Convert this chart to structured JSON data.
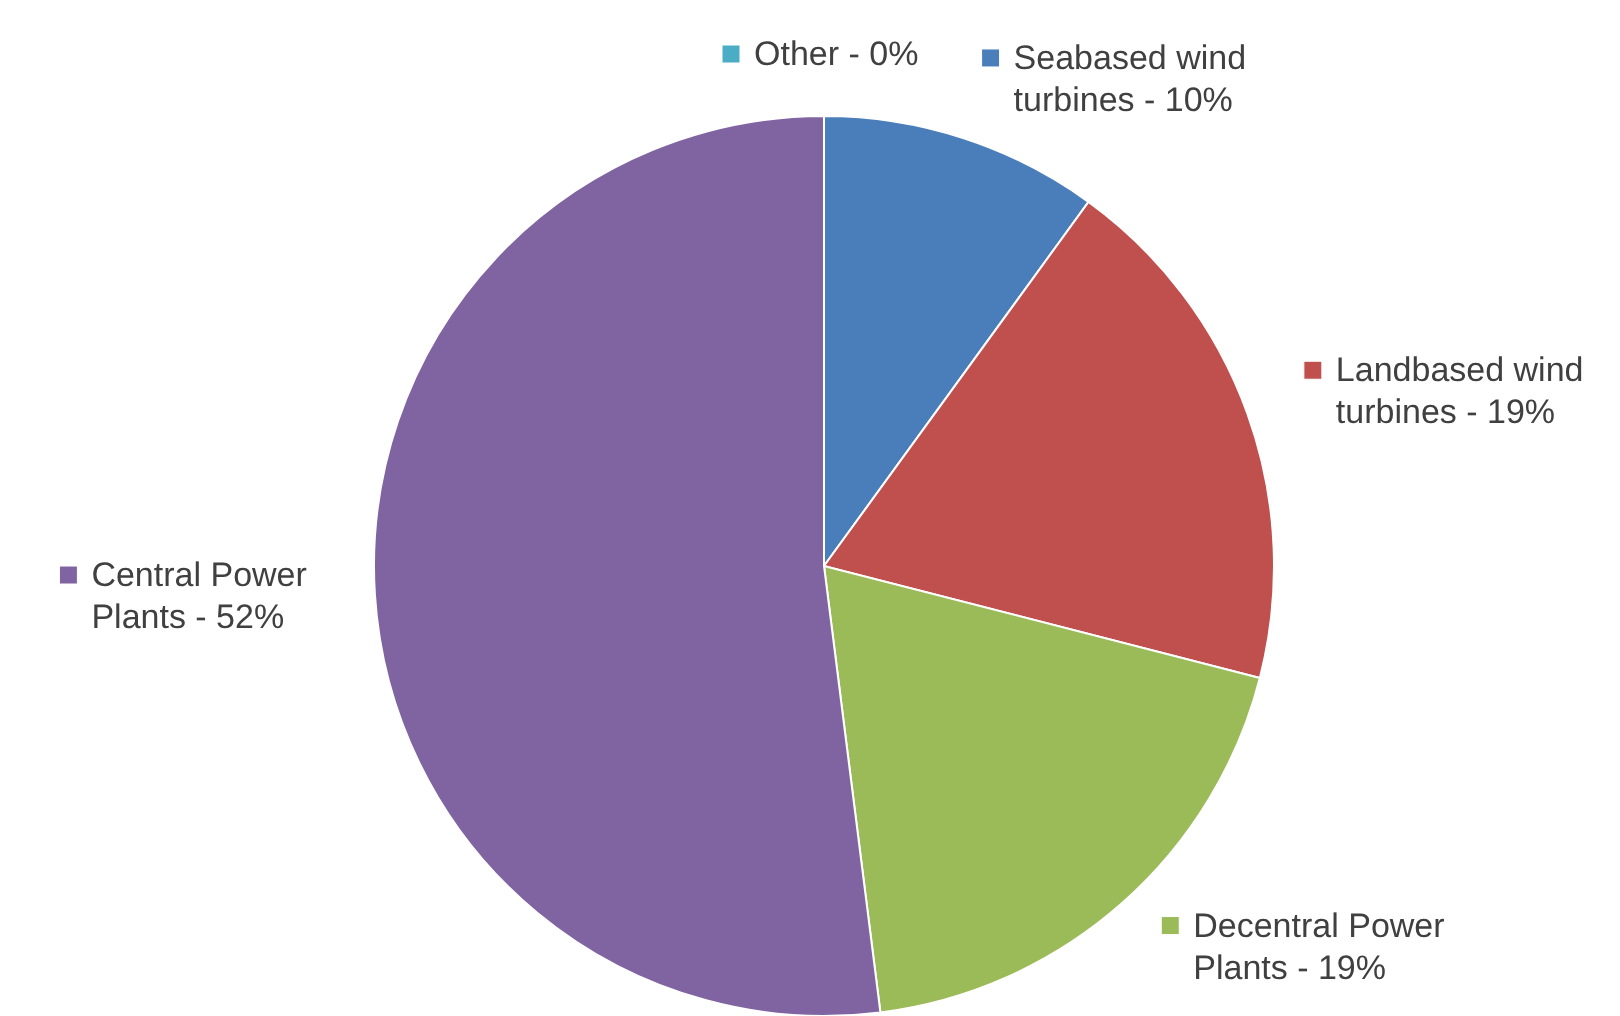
{
  "chart_data": {
    "type": "pie",
    "legend": "right",
    "categories": [
      "Other",
      "Seabased wind turbines",
      "Landbased wind turbines",
      "Decentral Power Plants",
      "Central Power Plants"
    ],
    "values": [
      0,
      10,
      19,
      19,
      52
    ],
    "value_labels": [
      "0%",
      "10%",
      "19%",
      "19%",
      "52%"
    ],
    "colors": [
      "#4bacc6",
      "#4a7ebb",
      "#c0504d",
      "#9bbb59",
      "#8064a2"
    ]
  }
}
